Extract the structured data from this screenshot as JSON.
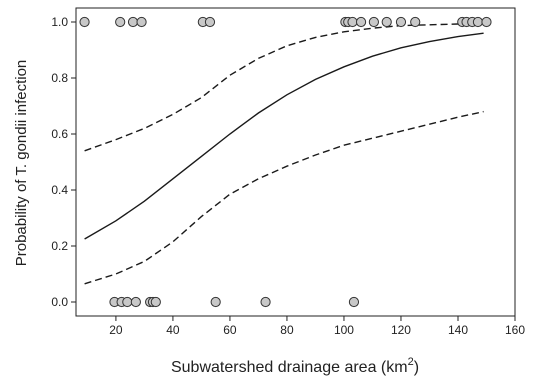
{
  "chart_data": {
    "type": "scatter",
    "title": "",
    "xlabel": "Subwatershed drainage area (km",
    "xlabel_sup": "2",
    "xlabel_tail": ")",
    "ylabel": "Probability of T. gondii  infection",
    "xlim": [
      5,
      160
    ],
    "ylim": [
      -0.05,
      1.05
    ],
    "xticks": [
      20,
      40,
      60,
      80,
      100,
      120,
      140,
      160
    ],
    "yticks": [
      0.0,
      0.2,
      0.4,
      0.6,
      0.8,
      1.0
    ],
    "ytick_labels": [
      "0.0",
      "0.2",
      "0.4",
      "0.6",
      "0.8",
      "1.0"
    ],
    "grid": false,
    "points_color": "#c8c8c8",
    "line_color": "#1a1a1a",
    "series": [
      {
        "kind": "points",
        "x": [
          9,
          21.5,
          26,
          29,
          50.5,
          53,
          19.5,
          22,
          24,
          27,
          32,
          33,
          34,
          55,
          72.5,
          103.5,
          100.5,
          101.5,
          103,
          106,
          110.5,
          115,
          120,
          125,
          141.5,
          143,
          145,
          147,
          150
        ],
        "y": [
          1,
          1,
          1,
          1,
          1,
          1,
          0,
          0,
          0,
          0,
          0,
          0,
          0,
          0,
          0,
          0,
          1,
          1,
          1,
          1,
          1,
          1,
          1,
          1,
          1,
          1,
          1,
          1,
          1
        ]
      },
      {
        "kind": "fit",
        "style": "solid",
        "x": [
          9,
          20,
          30,
          40,
          50,
          60,
          70,
          80,
          90,
          100,
          110,
          120,
          130,
          140,
          149
        ],
        "y": [
          0.225,
          0.29,
          0.36,
          0.44,
          0.52,
          0.6,
          0.675,
          0.74,
          0.795,
          0.84,
          0.878,
          0.908,
          0.93,
          0.948,
          0.96
        ]
      },
      {
        "kind": "ci-upper",
        "style": "dashed",
        "x": [
          9,
          20,
          30,
          40,
          50,
          60,
          70,
          80,
          90,
          100,
          110,
          120,
          130,
          140,
          149
        ],
        "y": [
          0.54,
          0.58,
          0.62,
          0.67,
          0.73,
          0.81,
          0.87,
          0.915,
          0.945,
          0.965,
          0.978,
          0.987,
          0.99,
          0.993,
          0.995
        ]
      },
      {
        "kind": "ci-lower",
        "style": "dashed",
        "x": [
          9,
          20,
          30,
          40,
          50,
          60,
          70,
          80,
          90,
          100,
          110,
          120,
          130,
          140,
          149
        ],
        "y": [
          0.065,
          0.1,
          0.145,
          0.215,
          0.305,
          0.385,
          0.44,
          0.485,
          0.525,
          0.56,
          0.585,
          0.61,
          0.635,
          0.66,
          0.68
        ]
      }
    ]
  }
}
